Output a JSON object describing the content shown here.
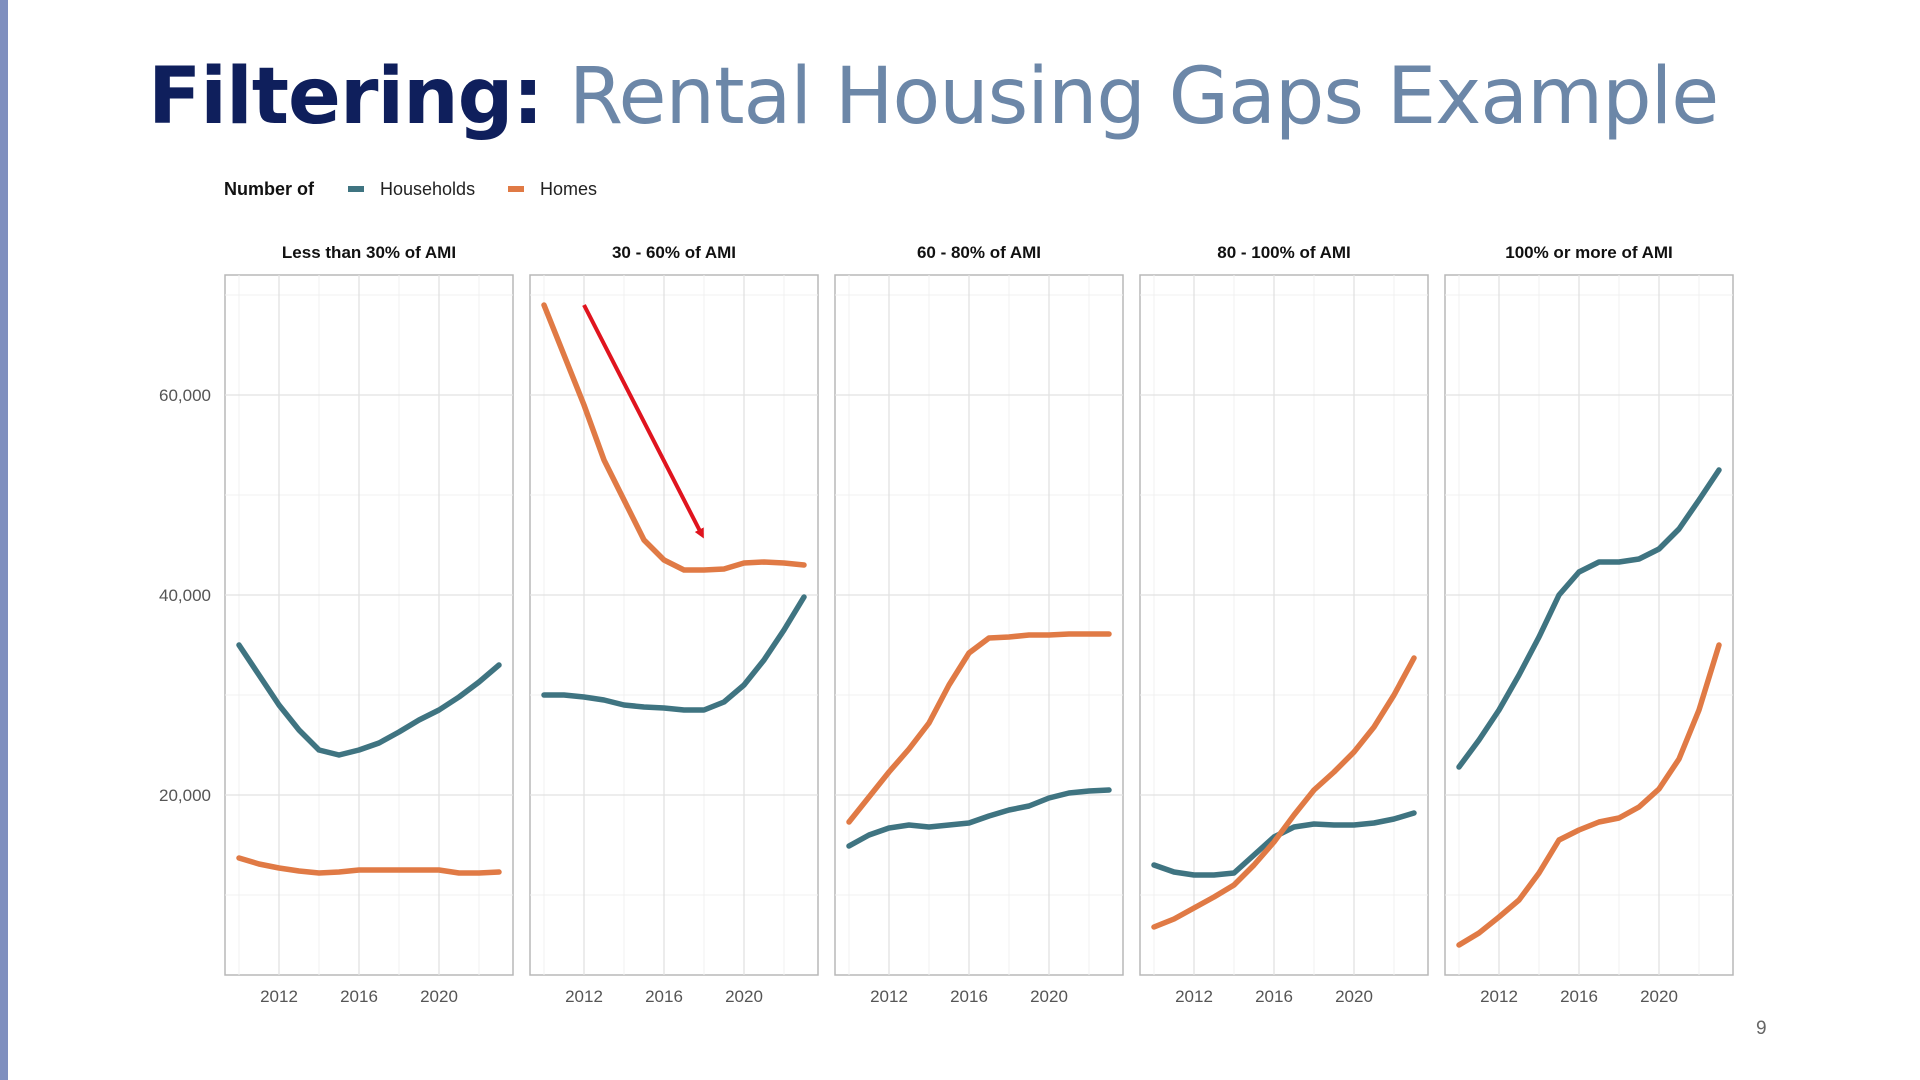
{
  "slide": {
    "title_bold": "Filtering:",
    "title_rest": "Rental Housing Gaps Example",
    "page_number": "9"
  },
  "chart_data": {
    "type": "line",
    "legend": {
      "title": "Number of",
      "placement": "top-left"
    },
    "series_styles": [
      {
        "name": "Households",
        "color": "#3f7481"
      },
      {
        "name": "Homes",
        "color": "#e07a45"
      }
    ],
    "x_ticks": [
      2012,
      2016,
      2020
    ],
    "xlim": [
      2009.3,
      2023.7
    ],
    "y_ticks": [
      20000,
      40000,
      60000
    ],
    "y_tick_labels": [
      "20,000",
      "40,000",
      "60,000"
    ],
    "ylim": [
      2000,
      72000
    ],
    "grid": true,
    "panels": [
      {
        "title": "Less than 30% of AMI",
        "series": [
          {
            "name": "Households",
            "x": [
              2010,
              2011,
              2012,
              2013,
              2014,
              2015,
              2016,
              2017,
              2018,
              2019,
              2020,
              2021,
              2022,
              2023
            ],
            "y": [
              35000,
              32000,
              29000,
              26500,
              24500,
              24000,
              24500,
              25200,
              26300,
              27500,
              28500,
              29800,
              31300,
              33000
            ]
          },
          {
            "name": "Homes",
            "x": [
              2010,
              2011,
              2012,
              2013,
              2014,
              2015,
              2016,
              2017,
              2018,
              2019,
              2020,
              2021,
              2022,
              2023
            ],
            "y": [
              13700,
              13100,
              12700,
              12400,
              12200,
              12300,
              12500,
              12500,
              12500,
              12500,
              12500,
              12200,
              12200,
              12300
            ]
          }
        ]
      },
      {
        "title": "30 - 60% of AMI",
        "series": [
          {
            "name": "Households",
            "x": [
              2010,
              2011,
              2012,
              2013,
              2014,
              2015,
              2016,
              2017,
              2018,
              2019,
              2020,
              2021,
              2022,
              2023
            ],
            "y": [
              30000,
              30000,
              29800,
              29500,
              29000,
              28800,
              28700,
              28500,
              28500,
              29300,
              31000,
              33500,
              36500,
              39800
            ]
          },
          {
            "name": "Homes",
            "x": [
              2010,
              2011,
              2012,
              2013,
              2014,
              2015,
              2016,
              2017,
              2018,
              2019,
              2020,
              2021,
              2022,
              2023
            ],
            "y": [
              69000,
              64000,
              59000,
              53500,
              49500,
              45500,
              43500,
              42500,
              42500,
              42600,
              43200,
              43300,
              43200,
              43000
            ]
          }
        ]
      },
      {
        "title": "60 - 80% of AMI",
        "series": [
          {
            "name": "Households",
            "x": [
              2010,
              2011,
              2012,
              2013,
              2014,
              2015,
              2016,
              2017,
              2018,
              2019,
              2020,
              2021,
              2022,
              2023
            ],
            "y": [
              14900,
              16000,
              16700,
              17000,
              16800,
              17000,
              17200,
              17900,
              18500,
              18900,
              19700,
              20200,
              20400,
              20500
            ]
          },
          {
            "name": "Homes",
            "x": [
              2010,
              2011,
              2012,
              2013,
              2014,
              2015,
              2016,
              2017,
              2018,
              2019,
              2020,
              2021,
              2022,
              2023
            ],
            "y": [
              17300,
              19800,
              22300,
              24600,
              27200,
              31000,
              34200,
              35700,
              35800,
              36000,
              36000,
              36100,
              36100,
              36100
            ]
          }
        ]
      },
      {
        "title": "80 - 100% of AMI",
        "series": [
          {
            "name": "Households",
            "x": [
              2010,
              2011,
              2012,
              2013,
              2014,
              2015,
              2016,
              2017,
              2018,
              2019,
              2020,
              2021,
              2022,
              2023
            ],
            "y": [
              13000,
              12300,
              12000,
              12000,
              12200,
              14000,
              15800,
              16800,
              17100,
              17000,
              17000,
              17200,
              17600,
              18200
            ]
          },
          {
            "name": "Homes",
            "x": [
              2010,
              2011,
              2012,
              2013,
              2014,
              2015,
              2016,
              2017,
              2018,
              2019,
              2020,
              2021,
              2022,
              2023
            ],
            "y": [
              6800,
              7600,
              8700,
              9800,
              11000,
              13000,
              15300,
              18000,
              20500,
              22300,
              24300,
              26800,
              30000,
              33700
            ]
          }
        ]
      },
      {
        "title": "100% or more of AMI",
        "series": [
          {
            "name": "Households",
            "x": [
              2010,
              2011,
              2012,
              2013,
              2014,
              2015,
              2016,
              2017,
              2018,
              2019,
              2020,
              2021,
              2022,
              2023
            ],
            "y": [
              22800,
              25500,
              28500,
              32000,
              35800,
              40000,
              42300,
              43300,
              43300,
              43600,
              44600,
              46600,
              49500,
              52500
            ]
          },
          {
            "name": "Homes",
            "x": [
              2010,
              2011,
              2012,
              2013,
              2014,
              2015,
              2016,
              2017,
              2018,
              2019,
              2020,
              2021,
              2022,
              2023
            ],
            "y": [
              5000,
              6200,
              7800,
              9500,
              12200,
              15500,
              16500,
              17300,
              17700,
              18800,
              20600,
              23600,
              28500,
              35000
            ]
          }
        ]
      }
    ],
    "annotations": [
      {
        "panel": 1,
        "type": "arrow",
        "color": "#e0141e",
        "from": [
          2012,
          69000
        ],
        "to": [
          2017.9,
          46000
        ]
      }
    ]
  }
}
